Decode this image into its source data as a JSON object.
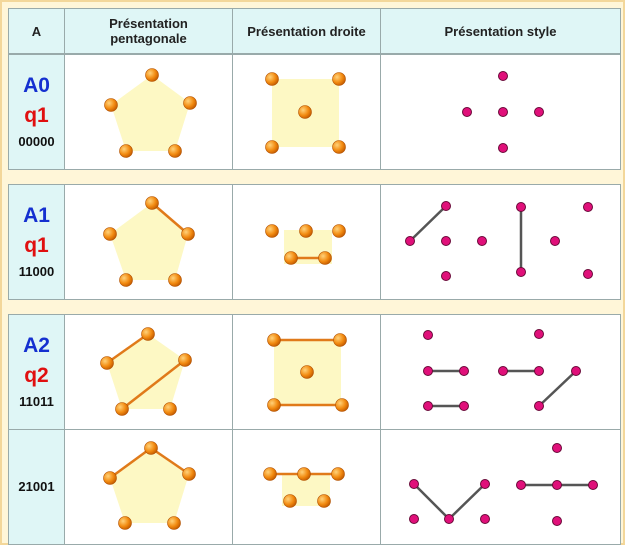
{
  "header": [
    "A",
    "Présentation pentagonale",
    "Présentation droite",
    "Présentation style"
  ],
  "rows": [
    {
      "name": "A0",
      "q": "q1",
      "code": "00000"
    },
    {
      "name": "A1",
      "q": "q1",
      "code": "11000"
    },
    {
      "name": "A2",
      "q": "q2",
      "code": "11011"
    },
    {
      "code": "21001"
    }
  ]
}
